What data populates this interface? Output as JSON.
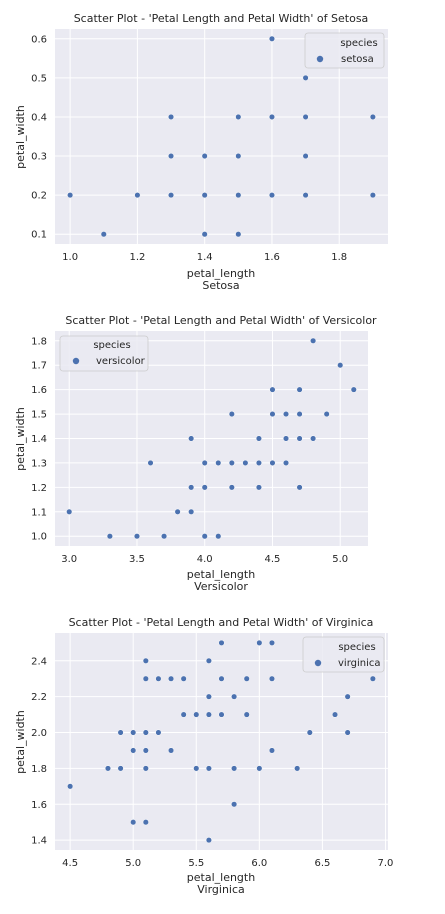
{
  "colors": {
    "panel_bg": "#eaeaf2",
    "grid": "#ffffff",
    "point": "#4c72b0",
    "point_edge": "#ffffff",
    "legend_bg": "#eaeaf2",
    "legend_border": "#cccccc"
  },
  "chart_data": [
    {
      "type": "scatter",
      "title": "Scatter Plot - 'Petal Length and Petal Width' of Setosa",
      "xlabel": "petal_length",
      "xsublabel": "Setosa",
      "ylabel": "petal_width",
      "xlim": [
        0.955,
        1.945
      ],
      "ylim": [
        0.075,
        0.625
      ],
      "xticks": [
        1.0,
        1.2,
        1.4,
        1.6,
        1.8
      ],
      "xtick_labels": [
        "1.0",
        "1.2",
        "1.4",
        "1.6",
        "1.8"
      ],
      "yticks": [
        0.1,
        0.2,
        0.3,
        0.4,
        0.5,
        0.6
      ],
      "ytick_labels": [
        "0.1",
        "0.2",
        "0.3",
        "0.4",
        "0.5",
        "0.6"
      ],
      "grid": true,
      "legend": {
        "title": "species",
        "label": "setosa",
        "position": "top-right"
      },
      "points": [
        [
          1.0,
          0.2
        ],
        [
          1.1,
          0.1
        ],
        [
          1.2,
          0.2
        ],
        [
          1.3,
          0.2
        ],
        [
          1.3,
          0.3
        ],
        [
          1.3,
          0.4
        ],
        [
          1.4,
          0.1
        ],
        [
          1.4,
          0.2
        ],
        [
          1.4,
          0.3
        ],
        [
          1.5,
          0.1
        ],
        [
          1.5,
          0.2
        ],
        [
          1.5,
          0.3
        ],
        [
          1.5,
          0.4
        ],
        [
          1.6,
          0.2
        ],
        [
          1.6,
          0.4
        ],
        [
          1.6,
          0.6
        ],
        [
          1.7,
          0.2
        ],
        [
          1.7,
          0.3
        ],
        [
          1.7,
          0.4
        ],
        [
          1.7,
          0.5
        ],
        [
          1.9,
          0.2
        ],
        [
          1.9,
          0.4
        ]
      ]
    },
    {
      "type": "scatter",
      "title": "Scatter Plot - 'Petal Length and Petal Width' of Versicolor",
      "xlabel": "petal_length",
      "xsublabel": "Versicolor",
      "ylabel": "petal_width",
      "xlim": [
        2.895,
        5.205
      ],
      "ylim": [
        0.96,
        1.84
      ],
      "xticks": [
        3.0,
        3.5,
        4.0,
        4.5,
        5.0
      ],
      "xtick_labels": [
        "3.0",
        "3.5",
        "4.0",
        "4.5",
        "5.0"
      ],
      "yticks": [
        1.0,
        1.1,
        1.2,
        1.3,
        1.4,
        1.5,
        1.6,
        1.7,
        1.8
      ],
      "ytick_labels": [
        "1.0",
        "1.1",
        "1.2",
        "1.3",
        "1.4",
        "1.5",
        "1.6",
        "1.7",
        "1.8"
      ],
      "grid": true,
      "legend": {
        "title": "species",
        "label": "versicolor",
        "position": "top-left"
      },
      "points": [
        [
          3.0,
          1.1
        ],
        [
          3.3,
          1.0
        ],
        [
          3.5,
          1.0
        ],
        [
          3.6,
          1.3
        ],
        [
          3.7,
          1.0
        ],
        [
          3.8,
          1.1
        ],
        [
          3.9,
          1.1
        ],
        [
          3.9,
          1.2
        ],
        [
          3.9,
          1.4
        ],
        [
          4.0,
          1.0
        ],
        [
          4.0,
          1.2
        ],
        [
          4.0,
          1.3
        ],
        [
          4.1,
          1.0
        ],
        [
          4.1,
          1.3
        ],
        [
          4.2,
          1.2
        ],
        [
          4.2,
          1.3
        ],
        [
          4.2,
          1.5
        ],
        [
          4.3,
          1.3
        ],
        [
          4.4,
          1.2
        ],
        [
          4.4,
          1.3
        ],
        [
          4.4,
          1.4
        ],
        [
          4.5,
          1.3
        ],
        [
          4.5,
          1.5
        ],
        [
          4.5,
          1.6
        ],
        [
          4.6,
          1.3
        ],
        [
          4.6,
          1.4
        ],
        [
          4.6,
          1.5
        ],
        [
          4.7,
          1.2
        ],
        [
          4.7,
          1.4
        ],
        [
          4.7,
          1.5
        ],
        [
          4.7,
          1.6
        ],
        [
          4.8,
          1.4
        ],
        [
          4.8,
          1.8
        ],
        [
          4.9,
          1.5
        ],
        [
          5.0,
          1.7
        ],
        [
          5.1,
          1.6
        ]
      ]
    },
    {
      "type": "scatter",
      "title": "Scatter Plot - 'Petal Length and Petal Width' of Virginica",
      "xlabel": "petal_length",
      "xsublabel": "Virginica",
      "ylabel": "petal_width",
      "xlim": [
        4.38,
        7.02
      ],
      "ylim": [
        1.345,
        2.555
      ],
      "xticks": [
        4.5,
        5.0,
        5.5,
        6.0,
        6.5,
        7.0
      ],
      "xtick_labels": [
        "4.5",
        "5.0",
        "5.5",
        "6.0",
        "6.5",
        "7.0"
      ],
      "yticks": [
        1.4,
        1.6,
        1.8,
        2.0,
        2.2,
        2.4
      ],
      "ytick_labels": [
        "1.4",
        "1.6",
        "1.8",
        "2.0",
        "2.2",
        "2.4"
      ],
      "grid": true,
      "legend": {
        "title": "species",
        "label": "virginica",
        "position": "top-right"
      },
      "points": [
        [
          4.5,
          1.7
        ],
        [
          4.8,
          1.8
        ],
        [
          4.9,
          1.8
        ],
        [
          4.9,
          2.0
        ],
        [
          5.0,
          1.5
        ],
        [
          5.0,
          1.9
        ],
        [
          5.0,
          2.0
        ],
        [
          5.1,
          1.5
        ],
        [
          5.1,
          1.8
        ],
        [
          5.1,
          1.9
        ],
        [
          5.1,
          2.0
        ],
        [
          5.1,
          2.3
        ],
        [
          5.1,
          2.4
        ],
        [
          5.2,
          2.0
        ],
        [
          5.2,
          2.3
        ],
        [
          5.3,
          1.9
        ],
        [
          5.3,
          2.3
        ],
        [
          5.4,
          2.1
        ],
        [
          5.4,
          2.3
        ],
        [
          5.5,
          1.8
        ],
        [
          5.5,
          2.1
        ],
        [
          5.6,
          1.4
        ],
        [
          5.6,
          1.8
        ],
        [
          5.6,
          2.1
        ],
        [
          5.6,
          2.2
        ],
        [
          5.6,
          2.4
        ],
        [
          5.7,
          2.1
        ],
        [
          5.7,
          2.3
        ],
        [
          5.7,
          2.5
        ],
        [
          5.8,
          1.6
        ],
        [
          5.8,
          1.8
        ],
        [
          5.8,
          2.2
        ],
        [
          5.9,
          2.1
        ],
        [
          5.9,
          2.3
        ],
        [
          6.0,
          1.8
        ],
        [
          6.0,
          2.5
        ],
        [
          6.1,
          1.9
        ],
        [
          6.1,
          2.3
        ],
        [
          6.1,
          2.5
        ],
        [
          6.3,
          1.8
        ],
        [
          6.4,
          2.0
        ],
        [
          6.6,
          2.1
        ],
        [
          6.7,
          2.0
        ],
        [
          6.7,
          2.2
        ],
        [
          6.9,
          2.3
        ]
      ]
    }
  ]
}
